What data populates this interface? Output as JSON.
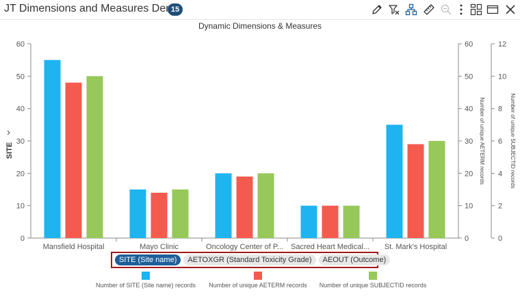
{
  "header": {
    "title": "JT Dimensions and Measures Demo",
    "badge_count": "15"
  },
  "toolbar": {
    "icons": [
      "pencil-icon",
      "filter-clear-icon",
      "hierarchy-icon",
      "ruler-icon",
      "zoom-out-icon",
      "more-vertical-icon",
      "layout-icon",
      "window-icon",
      "close-icon"
    ]
  },
  "chart_data": {
    "type": "bar",
    "title": "Dynamic Dimensions & Measures",
    "xlabel": "SITE",
    "categories": [
      "Mansfield Hospital",
      "Mayo Clinic",
      "Oncology Center of P...",
      "Sacred Heart Medical...",
      "St. Mark's Hospital"
    ],
    "series": [
      {
        "name": "Number of SITE (Site name) records",
        "values": [
          55,
          15,
          20,
          10,
          35
        ],
        "color": "#1eb4f0",
        "axis": "left"
      },
      {
        "name": "Number of unique AETERM records",
        "values": [
          48,
          14,
          19,
          10,
          29
        ],
        "color": "#f55a4e",
        "axis": "right1"
      },
      {
        "name": "Number of unique SUBJECTID records",
        "values": [
          10,
          3,
          4,
          2,
          6
        ],
        "color": "#96c85a",
        "axis": "right2"
      }
    ],
    "axes": {
      "left": {
        "ylim": [
          0,
          60
        ],
        "ticks": [
          "0",
          "10",
          "20",
          "30",
          "40",
          "50",
          "60"
        ],
        "label": ""
      },
      "right1": {
        "ylim": [
          0,
          60
        ],
        "ticks": [
          "0",
          "10",
          "20",
          "30",
          "40",
          "50",
          "60"
        ],
        "label": "Number of unique AETERM records"
      },
      "right2": {
        "ylim": [
          0,
          12
        ],
        "ticks": [
          "0",
          "2",
          "4",
          "6",
          "8",
          "10",
          "12"
        ],
        "label": "Number of unique SUBJECTID records"
      }
    },
    "grid": false
  },
  "dimension_chips": [
    {
      "label": "SITE (Site name)",
      "active": true
    },
    {
      "label": "AETOXGR (Standard Toxicity Grade)",
      "active": false
    },
    {
      "label": "AEOUT (Outcome)",
      "active": false
    }
  ]
}
